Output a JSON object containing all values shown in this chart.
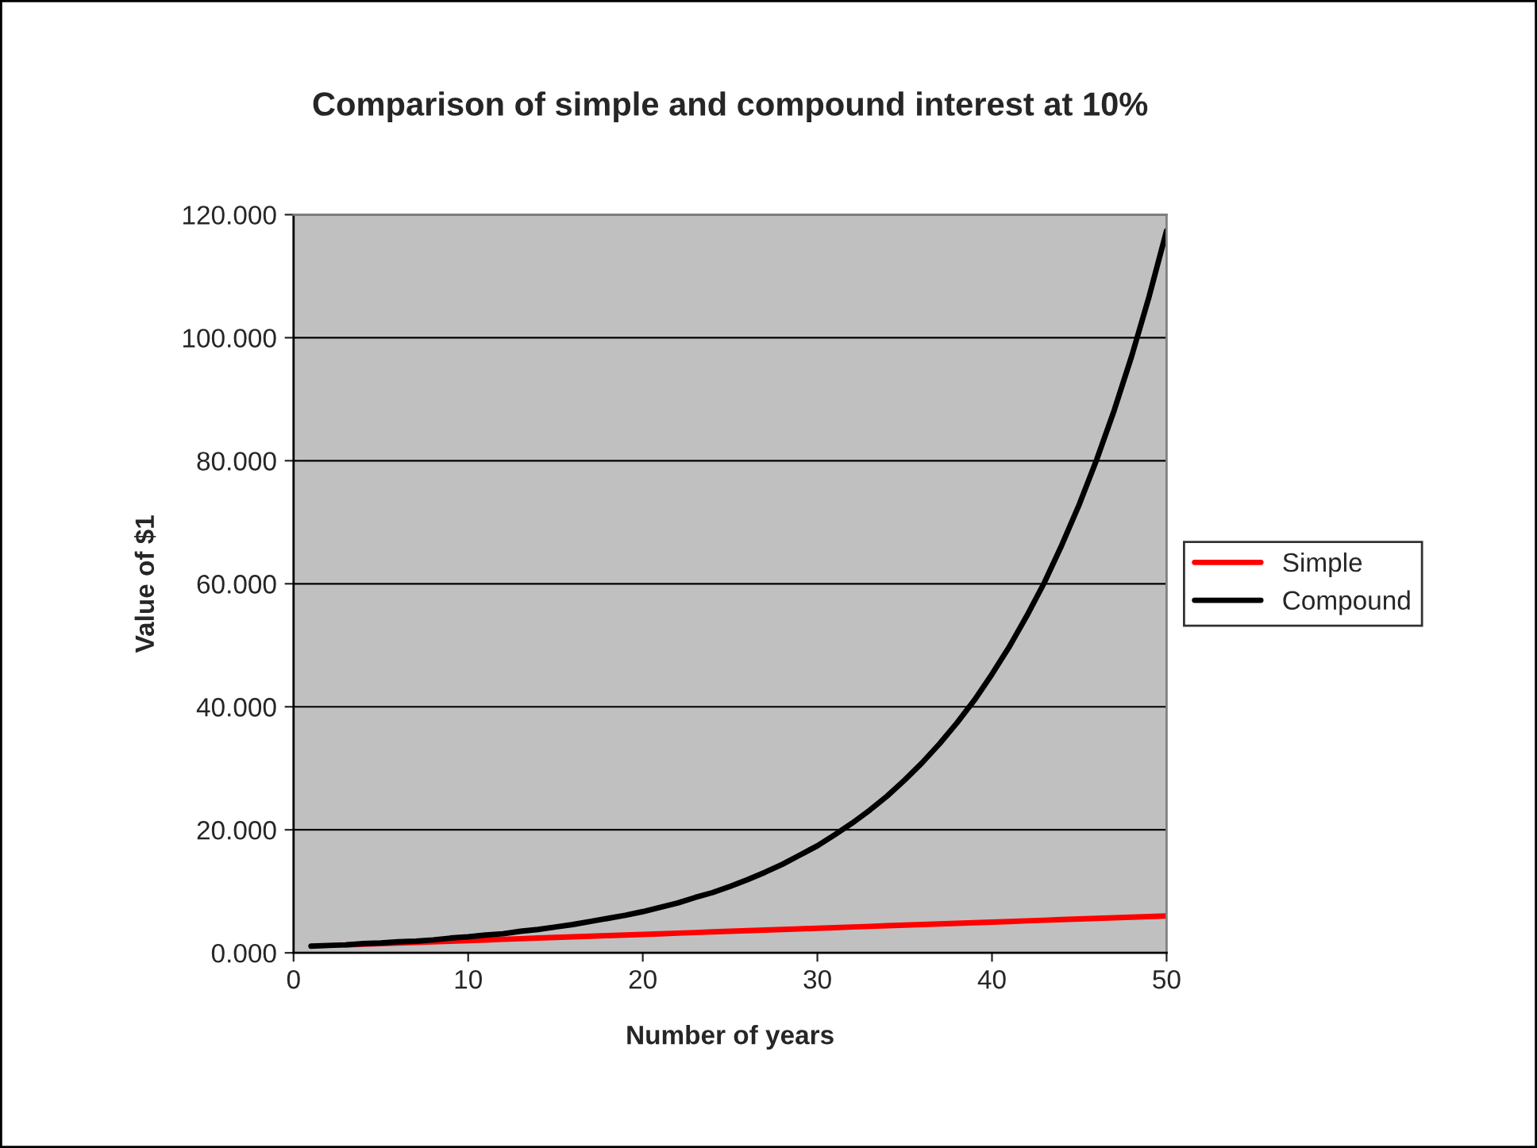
{
  "chart_data": {
    "type": "line",
    "title": "Comparison of simple and compound interest at 10%",
    "xlabel": "Number of years",
    "ylabel": "Value of $1",
    "x": [
      1,
      2,
      3,
      4,
      5,
      6,
      7,
      8,
      9,
      10,
      11,
      12,
      13,
      14,
      15,
      16,
      17,
      18,
      19,
      20,
      21,
      22,
      23,
      24,
      25,
      26,
      27,
      28,
      29,
      30,
      31,
      32,
      33,
      34,
      35,
      36,
      37,
      38,
      39,
      40,
      41,
      42,
      43,
      44,
      45,
      46,
      47,
      48,
      49,
      50
    ],
    "series": [
      {
        "name": "Simple",
        "color": "#ff0000",
        "values": [
          null,
          null,
          1.3,
          1.4,
          1.5,
          1.6,
          1.7,
          1.8,
          1.9,
          2.0,
          2.1,
          2.2,
          2.3,
          2.4,
          2.5,
          2.6,
          2.7,
          2.8,
          2.9,
          3.0,
          3.1,
          3.2,
          3.3,
          3.4,
          3.5,
          3.6,
          3.7,
          3.8,
          3.9,
          4.0,
          4.1,
          4.2,
          4.3,
          4.4,
          4.5,
          4.6,
          4.7,
          4.8,
          4.9,
          5.0,
          5.1,
          5.2,
          5.3,
          5.4,
          5.5,
          5.6,
          5.7,
          5.8,
          5.9,
          6.0
        ]
      },
      {
        "name": "Compound",
        "color": "#000000",
        "values": [
          1.1,
          1.2,
          1.3,
          1.5,
          1.6,
          1.8,
          1.9,
          2.1,
          2.4,
          2.6,
          2.9,
          3.1,
          3.5,
          3.8,
          4.2,
          4.6,
          5.1,
          5.6,
          6.1,
          6.7,
          7.4,
          8.1,
          9.0,
          9.8,
          10.8,
          11.9,
          13.1,
          14.4,
          15.9,
          17.4,
          19.2,
          21.1,
          23.2,
          25.5,
          28.1,
          30.9,
          34.0,
          37.4,
          41.1,
          45.3,
          49.8,
          54.8,
          60.2,
          66.3,
          72.9,
          80.2,
          88.2,
          97.0,
          106.7,
          117.4
        ]
      }
    ],
    "xlim": [
      0,
      50
    ],
    "xticks": [
      0,
      10,
      20,
      30,
      40,
      50
    ],
    "ylim": [
      0,
      120
    ],
    "yticks": [
      {
        "value": 0,
        "label": "0.000"
      },
      {
        "value": 20,
        "label": "20.000"
      },
      {
        "value": 40,
        "label": "40.000"
      },
      {
        "value": 60,
        "label": "60.000"
      },
      {
        "value": 80,
        "label": "80.000"
      },
      {
        "value": 100,
        "label": "100.000"
      },
      {
        "value": 120,
        "label": "120.000"
      }
    ],
    "grid": "y",
    "legend": "right",
    "marker": "none",
    "line_style": "solid"
  }
}
